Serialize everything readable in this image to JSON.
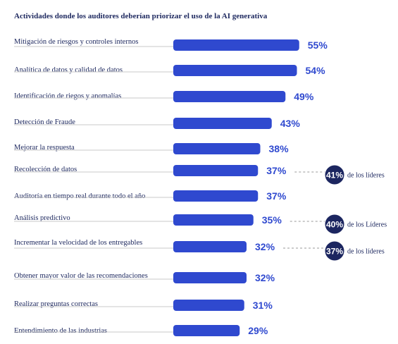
{
  "chart_data": {
    "type": "bar",
    "title": "Actividades donde los auditores deberían priorizar el uso de la AI generativa",
    "categories": [
      "Mitigación de riesgos y controles internos",
      "Analítica de datos y calidad de datos",
      "Identificación de riegos y anomalías",
      "Detección de Fraude",
      "Mejorar la respuesta",
      "Recolección de datos",
      "Auditoría en tiempo real durante todo el año",
      "Análisis predictivo",
      "Incrementar la velocidad de los entregables",
      "Obtener mayor valor de las recomendaciones",
      "Realizar preguntas correctas",
      "Entendimiento de las industrias"
    ],
    "values": [
      55,
      54,
      49,
      43,
      38,
      37,
      37,
      35,
      32,
      32,
      31,
      29
    ],
    "value_labels": [
      "55%",
      "54%",
      "49%",
      "43%",
      "38%",
      "37%",
      "37%",
      "35%",
      "32%",
      "32%",
      "31%",
      "29%"
    ],
    "unit": "%",
    "annotations": [
      {
        "category_index": 5,
        "value": 41,
        "label": "41%",
        "text": "de los líderes"
      },
      {
        "category_index": 7,
        "value": 40,
        "label": "40%",
        "text": "de los Líderes"
      },
      {
        "category_index": 8,
        "value": 37,
        "label": "37%",
        "text": "de los líderes"
      }
    ],
    "colors": {
      "bar": "#2f49cf",
      "badge": "#1c2660",
      "text": "#1f2a60",
      "line": "#c8c8c8"
    },
    "legend": "none",
    "grid": false
  }
}
